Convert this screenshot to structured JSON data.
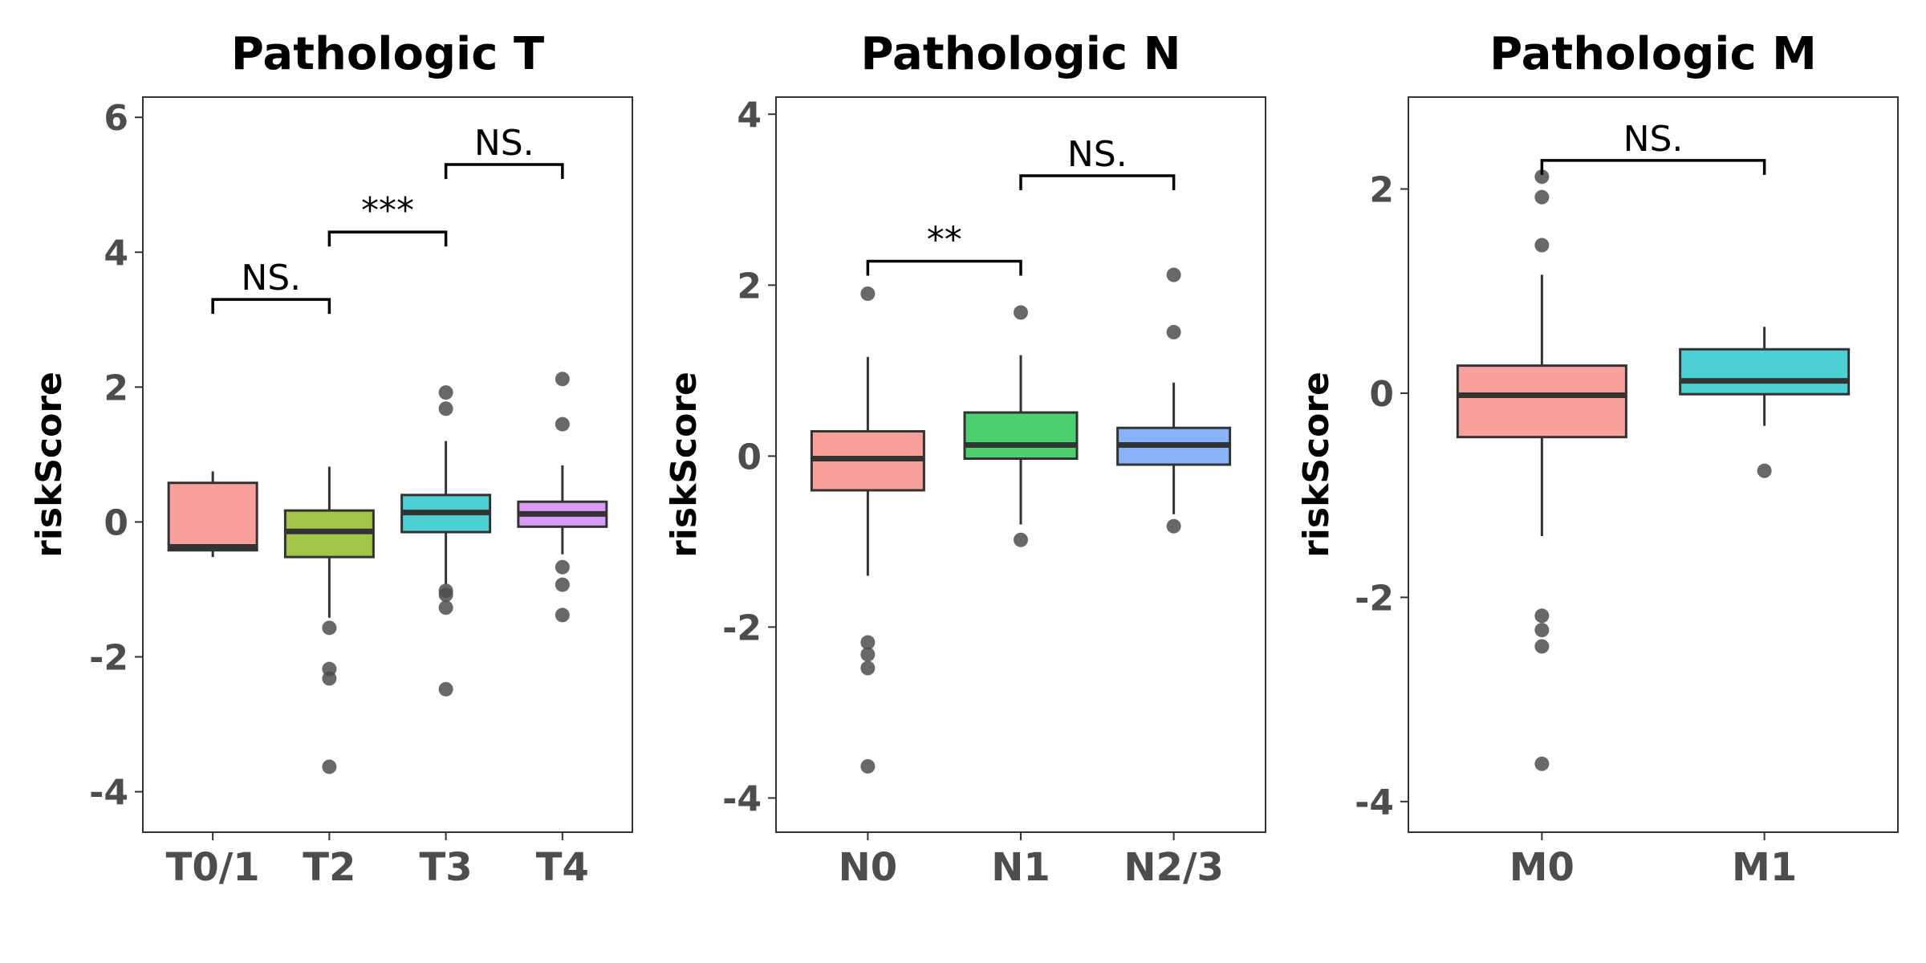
{
  "chart_data": [
    {
      "type": "box",
      "title": "Pathologic T",
      "ylabel": "riskScore",
      "ylim": [
        -4.6,
        6.3
      ],
      "yticks": [
        -4,
        -2,
        0,
        2,
        4,
        6
      ],
      "ytick_labels": [
        "-4",
        "-2",
        "0",
        "2",
        "4",
        "6"
      ],
      "categories": [
        "T0/1",
        "T2",
        "T3",
        "T4"
      ],
      "boxes": [
        {
          "name": "T0/1",
          "color": "#F8A09A",
          "min": -0.52,
          "q1": -0.42,
          "median": -0.37,
          "q3": 0.58,
          "max": 0.75,
          "outliers": []
        },
        {
          "name": "T2",
          "color": "#A3C64A",
          "min": -1.42,
          "q1": -0.52,
          "median": -0.14,
          "q3": 0.17,
          "max": 0.82,
          "outliers": [
            -1.57,
            -2.18,
            -2.32,
            -3.63
          ]
        },
        {
          "name": "T3",
          "color": "#4DD0D3",
          "min": -0.92,
          "q1": -0.15,
          "median": 0.14,
          "q3": 0.4,
          "max": 1.2,
          "outliers": [
            1.92,
            1.68,
            -1.02,
            -1.08,
            -1.27,
            -2.48
          ]
        },
        {
          "name": "T4",
          "color": "#D99BF5",
          "min": -0.48,
          "q1": -0.07,
          "median": 0.12,
          "q3": 0.3,
          "max": 0.84,
          "outliers": [
            2.12,
            1.45,
            -0.67,
            -0.93,
            -1.38
          ]
        }
      ],
      "comparisons": [
        {
          "from": 0,
          "to": 1,
          "y": 3.3,
          "label": "NS."
        },
        {
          "from": 1,
          "to": 2,
          "y": 4.3,
          "label": "***"
        },
        {
          "from": 2,
          "to": 3,
          "y": 5.3,
          "label": "NS."
        }
      ]
    },
    {
      "type": "box",
      "title": "Pathologic N",
      "ylabel": "riskScore",
      "ylim": [
        -4.4,
        4.2
      ],
      "yticks": [
        -4,
        -2,
        0,
        2,
        4
      ],
      "ytick_labels": [
        "-4",
        "-2",
        "0",
        "2",
        "4"
      ],
      "categories": [
        "N0",
        "N1",
        "N2/3"
      ],
      "boxes": [
        {
          "name": "N0",
          "color": "#F8A09A",
          "min": -1.4,
          "q1": -0.4,
          "median": -0.03,
          "q3": 0.29,
          "max": 1.16,
          "outliers": [
            1.9,
            -2.18,
            -2.32,
            -2.48,
            -3.63
          ]
        },
        {
          "name": "N1",
          "color": "#4CD070",
          "min": -0.8,
          "q1": -0.03,
          "median": 0.13,
          "q3": 0.51,
          "max": 1.18,
          "outliers": [
            1.68,
            -0.98
          ]
        },
        {
          "name": "N2/3",
          "color": "#8AB2FA",
          "min": -0.68,
          "q1": -0.1,
          "median": 0.13,
          "q3": 0.33,
          "max": 0.86,
          "outliers": [
            2.12,
            1.45,
            -0.82
          ]
        }
      ],
      "comparisons": [
        {
          "from": 0,
          "to": 1,
          "y": 2.28,
          "label": "**"
        },
        {
          "from": 1,
          "to": 2,
          "y": 3.28,
          "label": "NS."
        }
      ]
    },
    {
      "type": "box",
      "title": "Pathologic M",
      "ylabel": "riskScore",
      "ylim": [
        -4.3,
        2.9
      ],
      "yticks": [
        -4,
        -2,
        0,
        2
      ],
      "ytick_labels": [
        "-4",
        "-2",
        "0",
        "2"
      ],
      "categories": [
        "M0",
        "M1"
      ],
      "boxes": [
        {
          "name": "M0",
          "color": "#F8A09A",
          "min": -1.4,
          "q1": -0.43,
          "median": -0.02,
          "q3": 0.27,
          "max": 1.16,
          "outliers": [
            2.12,
            1.92,
            1.45,
            -2.18,
            -2.32,
            -2.48,
            -3.63
          ]
        },
        {
          "name": "M1",
          "color": "#4DD0D3",
          "min": -0.32,
          "q1": -0.01,
          "median": 0.12,
          "q3": 0.43,
          "max": 0.65,
          "outliers": [
            -0.76
          ]
        }
      ],
      "comparisons": [
        {
          "from": 0,
          "to": 1,
          "y": 2.28,
          "label": "NS."
        }
      ]
    }
  ]
}
